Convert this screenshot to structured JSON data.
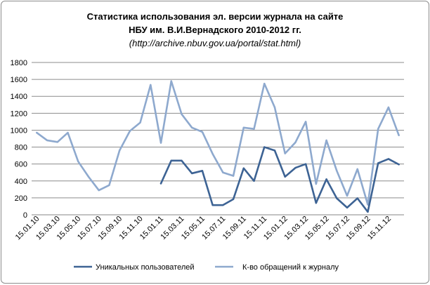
{
  "chart_data": {
    "type": "line",
    "title_lines": [
      "Статистика использования эл. версии журнала на сайте",
      "НБУ им. В.И.Вернадского 2010-2012 гг."
    ],
    "subtitle": "(http://archive.nbuv.gov.ua/portal/stat.html)",
    "xlabel": "",
    "ylabel": "",
    "ylim": [
      0,
      1800
    ],
    "yticks": [
      0,
      200,
      400,
      600,
      800,
      1000,
      1200,
      1400,
      1600,
      1800
    ],
    "grid": "horizontal",
    "legend_position": "bottom",
    "x": [
      "01.10",
      "02.10",
      "03.10",
      "04.10",
      "05.10",
      "06.10",
      "07.10",
      "08.10",
      "09.10",
      "10.10",
      "11.10",
      "12.10",
      "01.11",
      "02.11",
      "03.11",
      "04.11",
      "05.11",
      "06.11",
      "07.11",
      "08.11",
      "09.11",
      "10.11",
      "11.11",
      "12.11",
      "01.12",
      "02.12",
      "03.12",
      "04.12",
      "05.12",
      "06.12",
      "07.12",
      "08.12",
      "09.12",
      "10.12",
      "11.12",
      "12.12"
    ],
    "x_tick_labels": [
      "15.01.10",
      "15.03.10",
      "15.05.10",
      "15.07.10",
      "15.09.10",
      "15.11.10",
      "15.01.11",
      "15.03.11",
      "15.05.11",
      "15.07.11",
      "15.09.11",
      "15.11.11",
      "15.01.12",
      "15.03.12",
      "15.05.12",
      "15.07.12",
      "15.09.12",
      "15.11.12"
    ],
    "series": [
      {
        "name": "Уникальных пользователей",
        "color": "#3d6394",
        "values": [
          null,
          null,
          null,
          null,
          null,
          null,
          null,
          null,
          null,
          null,
          null,
          null,
          370,
          640,
          640,
          490,
          520,
          115,
          115,
          185,
          550,
          400,
          800,
          760,
          450,
          555,
          600,
          140,
          420,
          195,
          85,
          195,
          35,
          610,
          660,
          595
        ]
      },
      {
        "name": "К-во обращений к журналу",
        "color": "#8ea9ce",
        "values": [
          970,
          880,
          860,
          970,
          630,
          450,
          290,
          350,
          760,
          990,
          1090,
          1535,
          850,
          1580,
          1190,
          1030,
          980,
          720,
          500,
          460,
          1030,
          1015,
          1550,
          1270,
          725,
          855,
          1100,
          365,
          880,
          520,
          225,
          540,
          120,
          1015,
          1270,
          940
        ]
      }
    ]
  }
}
